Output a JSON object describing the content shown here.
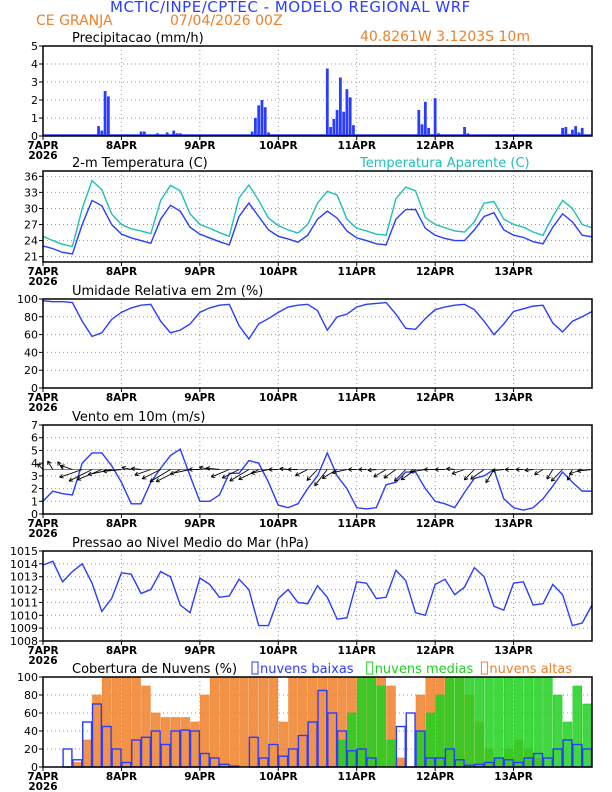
{
  "header": {
    "title": "MCTIC/INPE/CPTEC - MODELO REGIONAL WRF",
    "station": "CE GRANJA",
    "run": "07/04/2026 00Z",
    "coords": "40.8261W 3.1203S 10m"
  },
  "x_axis": {
    "day_labels": [
      "7APR",
      "8APR",
      "9APR",
      "10APR",
      "11APR",
      "12APR",
      "13APR"
    ],
    "year_label": "2026",
    "hours_total": 168
  },
  "colors": {
    "blue": "#2a3cff",
    "cyan": "#20c0b8",
    "orange": "#f0802a",
    "green": "#20d020",
    "black": "#000000"
  },
  "chart_data": [
    {
      "id": "precip",
      "type": "bar",
      "title": "Precipitacao (mm/h)",
      "ylim": [
        0,
        5
      ],
      "yticks": [
        "0",
        "1",
        "2",
        "3",
        "4",
        "5"
      ],
      "grid": true,
      "x_unit": "hours since 7APR 00Z",
      "points": [
        [
          17,
          0.55
        ],
        [
          18,
          0.3
        ],
        [
          19,
          2.5
        ],
        [
          20,
          2.2
        ],
        [
          30,
          0.25
        ],
        [
          31,
          0.25
        ],
        [
          35,
          0.15
        ],
        [
          38,
          0.2
        ],
        [
          40,
          0.3
        ],
        [
          41,
          0.15
        ],
        [
          42,
          0.15
        ],
        [
          64,
          0.25
        ],
        [
          65,
          1.0
        ],
        [
          66,
          1.7
        ],
        [
          67,
          2.0
        ],
        [
          68,
          1.6
        ],
        [
          69,
          0.2
        ],
        [
          87,
          3.75
        ],
        [
          88,
          0.5
        ],
        [
          89,
          0.95
        ],
        [
          90,
          1.45
        ],
        [
          91,
          3.25
        ],
        [
          92,
          1.35
        ],
        [
          93,
          2.6
        ],
        [
          94,
          2.15
        ],
        [
          95,
          0.6
        ],
        [
          115,
          1.45
        ],
        [
          116,
          0.65
        ],
        [
          117,
          1.9
        ],
        [
          118,
          0.45
        ],
        [
          119,
          0.1
        ],
        [
          120,
          2.1
        ],
        [
          121,
          0.15
        ],
        [
          129,
          0.5
        ],
        [
          130,
          0.15
        ],
        [
          145,
          0.1
        ],
        [
          159,
          0.45
        ],
        [
          160,
          0.5
        ],
        [
          161,
          0.1
        ],
        [
          162,
          0.35
        ],
        [
          163,
          0.55
        ],
        [
          164,
          0.2
        ],
        [
          165,
          0.45
        ]
      ]
    },
    {
      "id": "temp",
      "type": "line",
      "title": "2-m Temperatura (C)",
      "ylim": [
        20,
        37
      ],
      "yticks": [
        "21",
        "24",
        "27",
        "30",
        "33",
        "36"
      ],
      "grid": true,
      "x_step_hours": 3,
      "series": [
        {
          "name": "2-m Temperatura (C)",
          "color": "#2a3cff",
          "values": [
            23,
            22.5,
            21.8,
            21.5,
            27,
            31.5,
            30.5,
            27,
            25.2,
            24.5,
            24,
            23.5,
            28,
            30.6,
            29.5,
            26.5,
            25.2,
            24.5,
            23.8,
            23.2,
            28.5,
            31,
            28.5,
            26,
            24.8,
            24.3,
            23.7,
            25,
            28,
            29.5,
            28.2,
            25.8,
            24.5,
            24,
            23.4,
            23.2,
            28,
            29.8,
            29.8,
            26.3,
            25,
            24.4,
            24,
            24,
            26,
            28.5,
            29.2,
            26,
            25,
            24.6,
            23.8,
            23.4,
            26.5,
            29,
            27.5,
            25,
            24.7
          ]
        },
        {
          "name": "Temperatura Aparente (C)",
          "color": "#20c0b8",
          "values": [
            24.8,
            24,
            23.3,
            22.9,
            30,
            35.2,
            33.5,
            29,
            27,
            26.2,
            25.8,
            25.3,
            31.5,
            34.3,
            33.3,
            29,
            27,
            26.3,
            25.5,
            24.8,
            32,
            34.4,
            31.5,
            28.2,
            26.8,
            26,
            25.4,
            27,
            31,
            33.2,
            32.5,
            28,
            26.3,
            25.8,
            25.2,
            25,
            31.8,
            34,
            33.3,
            28.3,
            27,
            26.4,
            25.8,
            25.6,
            27.5,
            31,
            31.3,
            28,
            27,
            26.5,
            25.6,
            25,
            28.5,
            31.5,
            30,
            27,
            26.4
          ]
        }
      ]
    },
    {
      "id": "rh",
      "type": "line",
      "title": "Umidade Relativa em 2m (%)",
      "ylim": [
        0,
        100
      ],
      "yticks": [
        "0",
        "20",
        "40",
        "60",
        "80",
        "100"
      ],
      "grid": true,
      "x_step_hours": 3,
      "series": [
        {
          "color": "#2a3cff",
          "values": [
            98,
            97,
            97,
            96,
            75,
            58,
            62,
            77,
            85,
            90,
            93,
            94,
            75,
            62,
            65,
            72,
            85,
            90,
            93,
            94,
            70,
            55,
            72,
            78,
            85,
            91,
            93,
            94,
            87,
            65,
            80,
            83,
            91,
            94,
            95,
            96,
            83,
            67,
            66,
            78,
            88,
            91,
            93,
            94,
            88,
            75,
            60,
            72,
            86,
            89,
            92,
            93,
            73,
            63,
            75,
            80,
            86
          ]
        }
      ]
    },
    {
      "id": "wind",
      "type": "line",
      "title": "Vento em 10m (m/s)",
      "ylim": [
        0,
        7
      ],
      "yticks": [
        "0",
        "1",
        "2",
        "3",
        "4",
        "5",
        "6",
        "7"
      ],
      "grid": true,
      "x_step_hours": 3,
      "series": [
        {
          "color": "#2a3cff",
          "values": [
            1.0,
            1.8,
            1.6,
            1.5,
            4.0,
            4.8,
            4.8,
            3.8,
            2.5,
            0.8,
            0.8,
            2.5,
            3.6,
            4.6,
            5.1,
            3.0,
            1.0,
            1.0,
            1.5,
            3.2,
            3.2,
            4.2,
            4.0,
            2.5,
            0.7,
            0.5,
            0.8,
            2.0,
            3.0,
            4.8,
            3.0,
            2.0,
            0.5,
            0.4,
            0.5,
            2.3,
            2.5,
            3.3,
            3.3,
            2.0,
            1.0,
            0.8,
            0.5,
            1.7,
            2.8,
            3.0,
            3.5,
            1.2,
            0.5,
            0.3,
            0.5,
            1.2,
            2.2,
            3.3,
            2.5,
            1.8,
            1.8
          ]
        }
      ],
      "wind_dir_from_deg": [
        150,
        160,
        160,
        120,
        60,
        50,
        55,
        70,
        80,
        110,
        100,
        60,
        50,
        45,
        50,
        70,
        90,
        110,
        100,
        55,
        50,
        45,
        50,
        70,
        90,
        100,
        90,
        50,
        30,
        25,
        45,
        70,
        90,
        90,
        80,
        45,
        40,
        30,
        40,
        75,
        90,
        90,
        100,
        60,
        30,
        40,
        20,
        80,
        90,
        90,
        80,
        45,
        20,
        30,
        15,
        60,
        80
      ]
    },
    {
      "id": "pressure",
      "type": "line",
      "title": "Pressao ao Nivel Medio do Mar (hPa)",
      "ylim": [
        1008,
        1015
      ],
      "yticks": [
        "1008",
        "1009",
        "1010",
        "1011",
        "1012",
        "1013",
        "1014",
        "1015"
      ],
      "grid": true,
      "x_step_hours": 3,
      "series": [
        {
          "color": "#2a3cff",
          "values": [
            1013.9,
            1014.2,
            1012.6,
            1013.4,
            1014.0,
            1012.5,
            1010.3,
            1011.3,
            1013.3,
            1013.2,
            1011.7,
            1012.0,
            1013.4,
            1013.0,
            1010.8,
            1010.2,
            1012.9,
            1012.4,
            1011.4,
            1011.5,
            1012.8,
            1012.0,
            1009.2,
            1009.2,
            1011.3,
            1012.0,
            1011.0,
            1010.9,
            1012.3,
            1011.4,
            1009.7,
            1009.8,
            1012.6,
            1012.5,
            1011.3,
            1011.4,
            1013.5,
            1012.7,
            1010.2,
            1010.0,
            1012.4,
            1012.8,
            1011.6,
            1012.2,
            1013.7,
            1013.0,
            1010.7,
            1010.4,
            1012.5,
            1012.6,
            1010.8,
            1010.9,
            1012.4,
            1011.6,
            1009.2,
            1009.4,
            1010.8
          ]
        }
      ]
    },
    {
      "id": "clouds",
      "type": "bar",
      "title": "Cobertura de Nuvens (%)",
      "ylim": [
        0,
        100
      ],
      "yticks": [
        "0",
        "20",
        "40",
        "60",
        "80",
        "100"
      ],
      "grid": true,
      "x_step_hours": 3,
      "legend_position": "top",
      "series": [
        {
          "name": "nuvens altas",
          "color": "#f0802a",
          "values": [
            0,
            0,
            0,
            5,
            30,
            80,
            100,
            100,
            100,
            100,
            90,
            60,
            55,
            55,
            55,
            50,
            80,
            100,
            100,
            100,
            100,
            100,
            100,
            100,
            50,
            100,
            100,
            100,
            100,
            100,
            100,
            100,
            100,
            100,
            100,
            90,
            10,
            0,
            80,
            100,
            100,
            100,
            100,
            80,
            50,
            20,
            10,
            20,
            30,
            20,
            10,
            0,
            0,
            0,
            0,
            0
          ]
        },
        {
          "name": "nuvens medias",
          "color": "#20d020",
          "values": [
            0,
            0,
            0,
            0,
            0,
            0,
            0,
            0,
            0,
            0,
            0,
            0,
            0,
            0,
            0,
            0,
            0,
            0,
            0,
            0,
            0,
            0,
            0,
            0,
            0,
            0,
            0,
            0,
            0,
            0,
            30,
            60,
            100,
            100,
            90,
            30,
            0,
            0,
            40,
            60,
            80,
            100,
            100,
            100,
            100,
            100,
            100,
            100,
            100,
            100,
            100,
            100,
            80,
            50,
            90,
            70
          ]
        },
        {
          "name": "nuvens baixas",
          "color": "#2a3cff",
          "values": [
            0,
            0,
            20,
            8,
            50,
            70,
            45,
            20,
            5,
            30,
            33,
            40,
            25,
            40,
            41,
            40,
            15,
            10,
            3,
            1,
            0,
            33,
            10,
            25,
            12,
            20,
            35,
            50,
            85,
            60,
            40,
            18,
            20,
            10,
            0,
            0,
            45,
            60,
            40,
            10,
            10,
            20,
            8,
            2,
            3,
            5,
            10,
            8,
            5,
            10,
            15,
            10,
            20,
            30,
            25,
            20
          ]
        }
      ]
    }
  ]
}
